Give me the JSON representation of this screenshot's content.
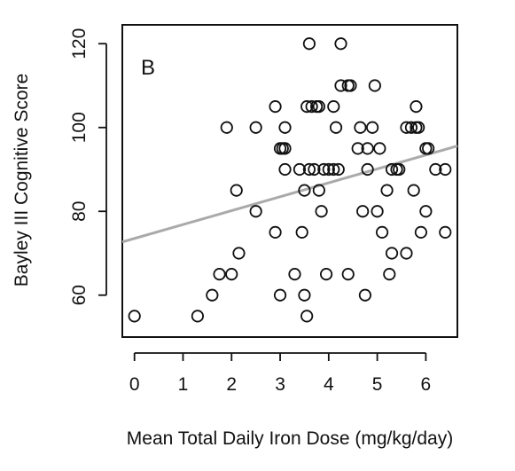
{
  "chart_data": {
    "type": "scatter",
    "panel_label": "B",
    "xlabel": "Mean Total Daily Iron Dose (mg/kg/day)",
    "ylabel": "Bayley III Cognitive Score",
    "xlim": [
      -0.25,
      6.65
    ],
    "ylim": [
      50,
      124.5
    ],
    "x_ticks": [
      0,
      1,
      2,
      3,
      4,
      5,
      6
    ],
    "y_ticks": [
      60,
      80,
      100,
      120
    ],
    "x_tick_labels": [
      "0",
      "1",
      "2",
      "3",
      "4",
      "5",
      "6"
    ],
    "y_tick_labels": [
      "60",
      "80",
      "100",
      "120"
    ],
    "grid": false,
    "legend": "none",
    "marker": "open-circle",
    "marker_color": "#111111",
    "trend_line": {
      "color": "#aaaaaa",
      "x": [
        -0.25,
        6.65
      ],
      "y": [
        72.7,
        95.6
      ]
    },
    "points": [
      [
        0.0,
        55
      ],
      [
        1.3,
        55
      ],
      [
        1.6,
        60
      ],
      [
        1.75,
        65
      ],
      [
        1.9,
        100
      ],
      [
        2.0,
        65
      ],
      [
        2.1,
        85
      ],
      [
        2.15,
        70
      ],
      [
        2.5,
        80
      ],
      [
        2.5,
        100
      ],
      [
        2.9,
        75
      ],
      [
        2.9,
        105
      ],
      [
        3.0,
        60
      ],
      [
        3.0,
        95
      ],
      [
        3.05,
        95
      ],
      [
        3.1,
        95
      ],
      [
        3.1,
        90
      ],
      [
        3.1,
        100
      ],
      [
        3.3,
        65
      ],
      [
        3.4,
        90
      ],
      [
        3.45,
        75
      ],
      [
        3.5,
        85
      ],
      [
        3.5,
        60
      ],
      [
        3.55,
        55
      ],
      [
        3.55,
        105
      ],
      [
        3.6,
        120
      ],
      [
        3.6,
        90
      ],
      [
        3.65,
        105
      ],
      [
        3.7,
        90
      ],
      [
        3.75,
        105
      ],
      [
        3.8,
        105
      ],
      [
        3.8,
        85
      ],
      [
        3.85,
        80
      ],
      [
        3.9,
        90
      ],
      [
        3.95,
        65
      ],
      [
        4.0,
        90
      ],
      [
        4.1,
        105
      ],
      [
        4.1,
        90
      ],
      [
        4.15,
        100
      ],
      [
        4.2,
        90
      ],
      [
        4.25,
        110
      ],
      [
        4.25,
        120
      ],
      [
        4.4,
        110
      ],
      [
        4.4,
        65
      ],
      [
        4.45,
        110
      ],
      [
        4.6,
        95
      ],
      [
        4.65,
        100
      ],
      [
        4.7,
        80
      ],
      [
        4.75,
        60
      ],
      [
        4.8,
        95
      ],
      [
        4.8,
        90
      ],
      [
        4.9,
        100
      ],
      [
        4.95,
        110
      ],
      [
        5.0,
        80
      ],
      [
        5.05,
        95
      ],
      [
        5.1,
        75
      ],
      [
        5.2,
        85
      ],
      [
        5.25,
        65
      ],
      [
        5.3,
        90
      ],
      [
        5.3,
        70
      ],
      [
        5.4,
        90
      ],
      [
        5.45,
        90
      ],
      [
        5.6,
        100
      ],
      [
        5.6,
        70
      ],
      [
        5.7,
        100
      ],
      [
        5.75,
        85
      ],
      [
        5.8,
        105
      ],
      [
        5.8,
        100
      ],
      [
        5.85,
        100
      ],
      [
        5.9,
        75
      ],
      [
        6.0,
        95
      ],
      [
        6.0,
        80
      ],
      [
        6.05,
        95
      ],
      [
        6.2,
        90
      ],
      [
        6.4,
        90
      ],
      [
        6.4,
        75
      ]
    ]
  }
}
